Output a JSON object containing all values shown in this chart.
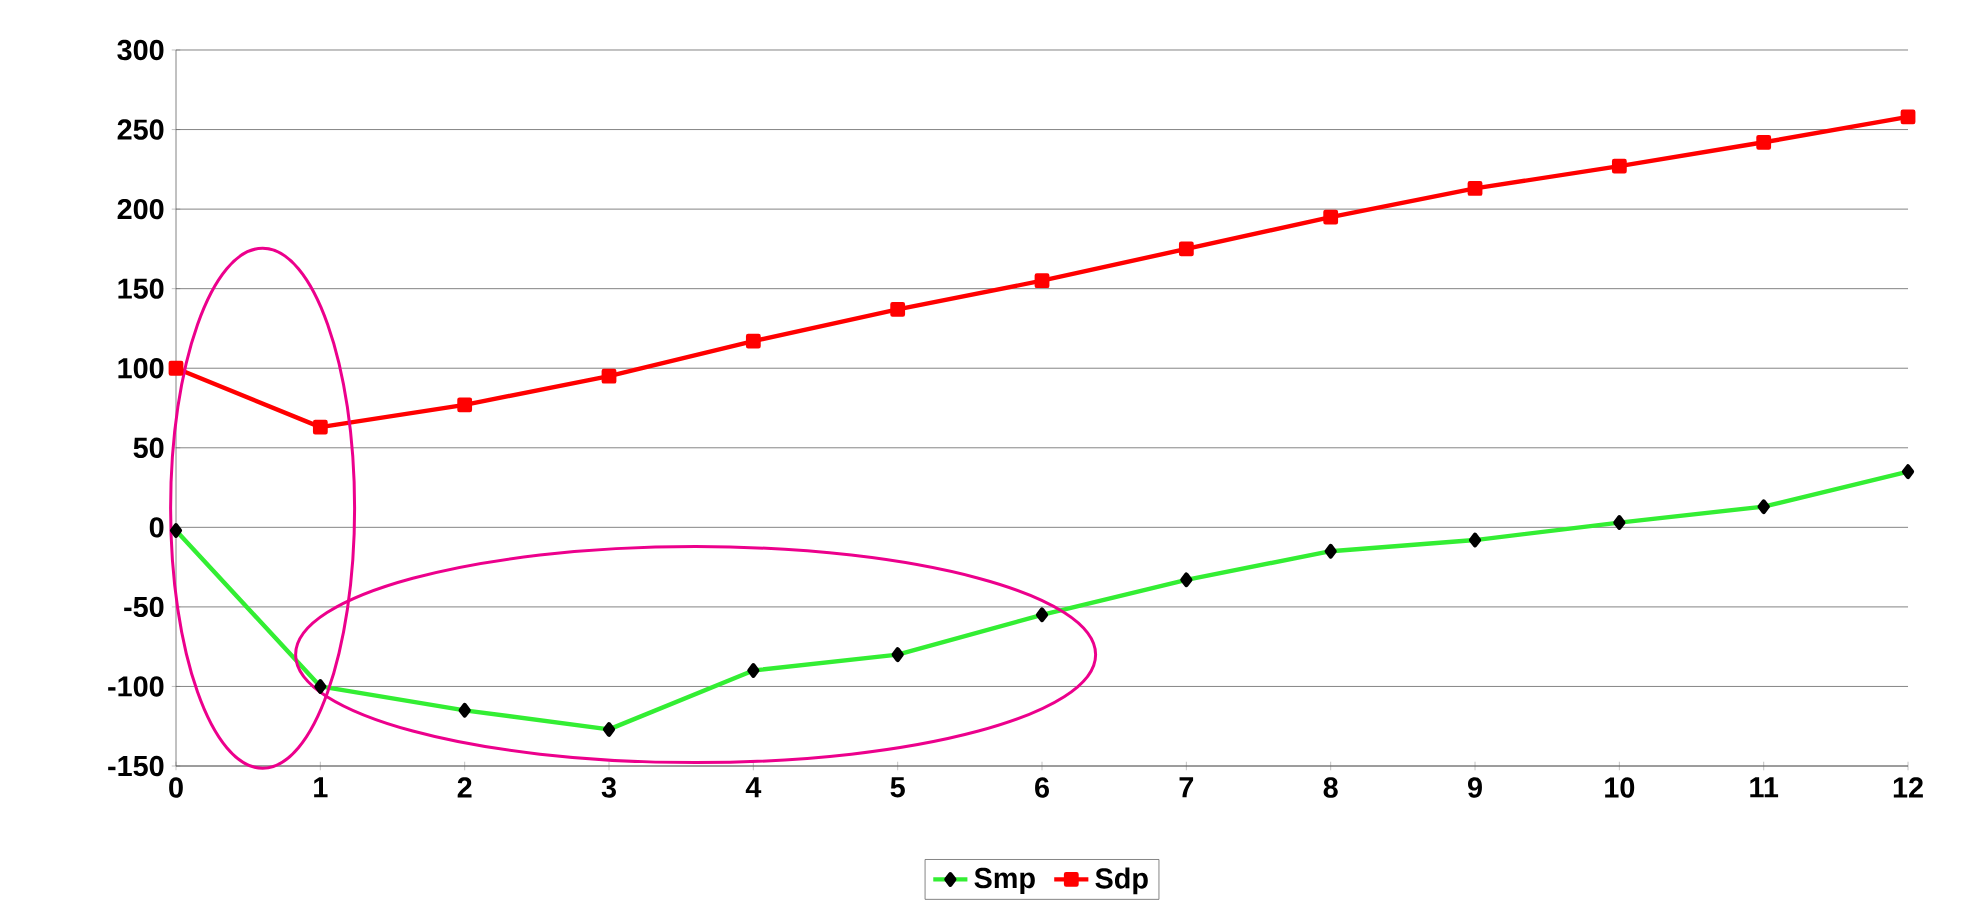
{
  "chart_data": {
    "type": "line",
    "x": [
      0,
      1,
      2,
      3,
      4,
      5,
      6,
      7,
      8,
      9,
      10,
      11,
      12
    ],
    "series": [
      {
        "name": "Smp",
        "color": "#33ee33",
        "marker": "diamond",
        "values": [
          -2,
          -100,
          -115,
          -127,
          -90,
          -80,
          -55,
          -33,
          -15,
          -8,
          3,
          13,
          35
        ]
      },
      {
        "name": "Sdp",
        "color": "#ff0000",
        "marker": "square",
        "values": [
          100,
          63,
          77,
          95,
          117,
          137,
          155,
          175,
          195,
          213,
          227,
          242,
          258
        ]
      }
    ],
    "xlim": [
      0,
      12
    ],
    "xticks": [
      0,
      1,
      2,
      3,
      4,
      5,
      6,
      7,
      8,
      9,
      10,
      11,
      12
    ],
    "ylim": [
      -150,
      300
    ],
    "yticks": [
      -150,
      -100,
      -50,
      0,
      50,
      100,
      150,
      200,
      250,
      300
    ],
    "grid": "y",
    "legend": "bottom"
  }
}
